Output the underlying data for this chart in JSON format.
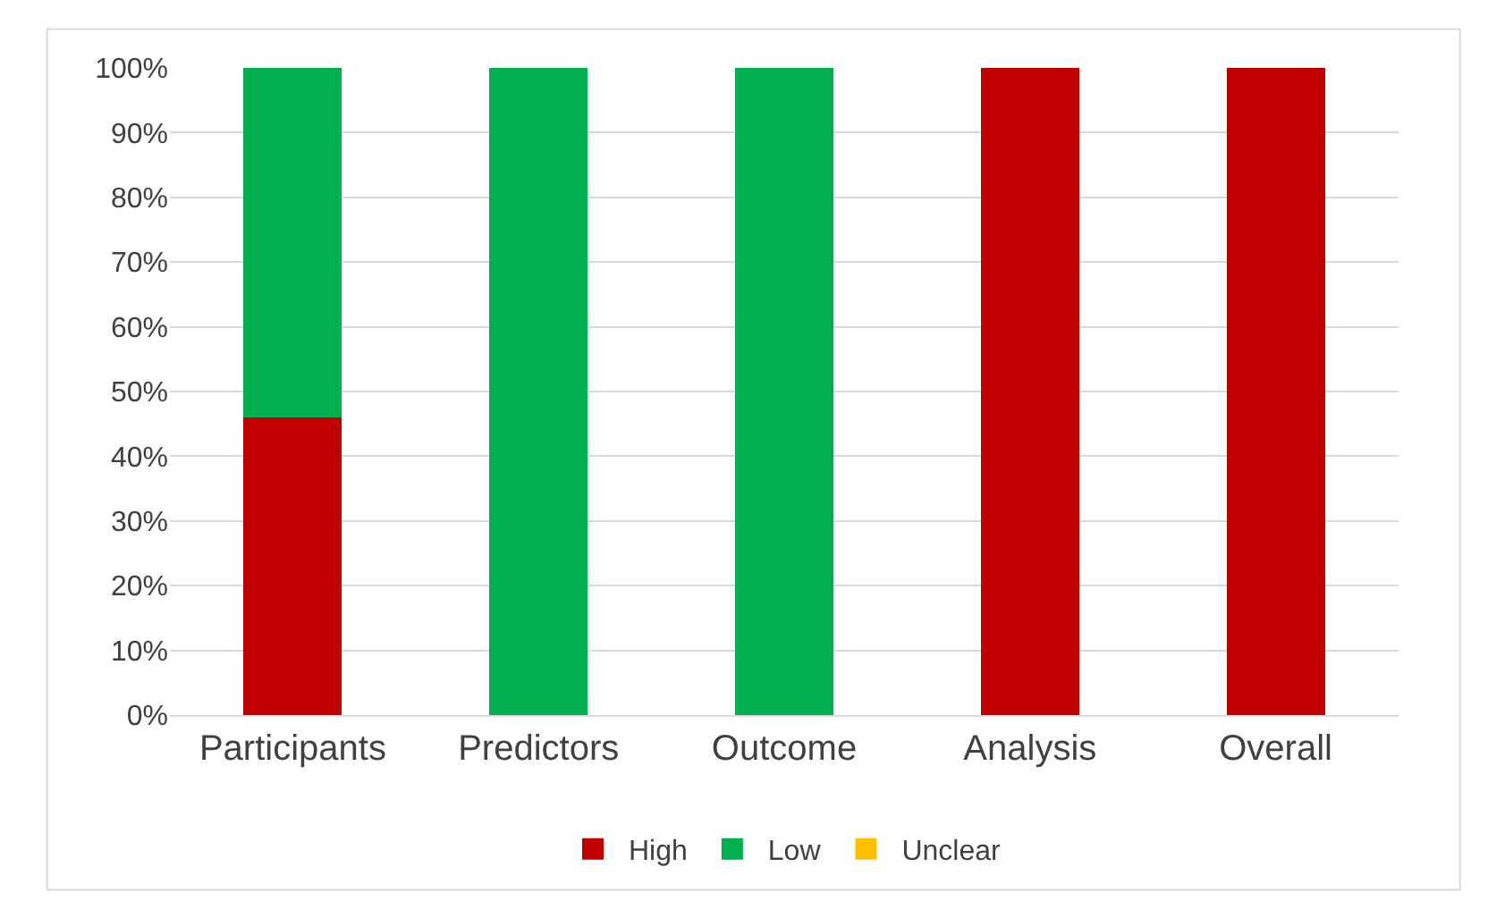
{
  "chart_data": {
    "type": "bar",
    "stacked": true,
    "categories": [
      "Participants",
      "Predictors",
      "Outcome",
      "Analysis",
      "Overall"
    ],
    "series": [
      {
        "name": "High",
        "color": "#c00000",
        "values": [
          46,
          0,
          0,
          100,
          100
        ]
      },
      {
        "name": "Low",
        "color": "#00b050",
        "values": [
          54,
          100,
          100,
          0,
          0
        ]
      },
      {
        "name": "Unclear",
        "color": "#ffc000",
        "values": [
          0,
          0,
          0,
          0,
          0
        ]
      }
    ],
    "ylim": [
      0,
      100
    ],
    "yticks": [
      {
        "value": 0,
        "label": "0%"
      },
      {
        "value": 10,
        "label": "10%"
      },
      {
        "value": 20,
        "label": "20%"
      },
      {
        "value": 30,
        "label": "30%"
      },
      {
        "value": 40,
        "label": "40%"
      },
      {
        "value": 50,
        "label": "50%"
      },
      {
        "value": 60,
        "label": "60%"
      },
      {
        "value": 70,
        "label": "70%"
      },
      {
        "value": 80,
        "label": "80%"
      },
      {
        "value": 90,
        "label": "90%"
      },
      {
        "value": 100,
        "label": "100%"
      }
    ],
    "grid": "y",
    "legend": "bottom"
  }
}
